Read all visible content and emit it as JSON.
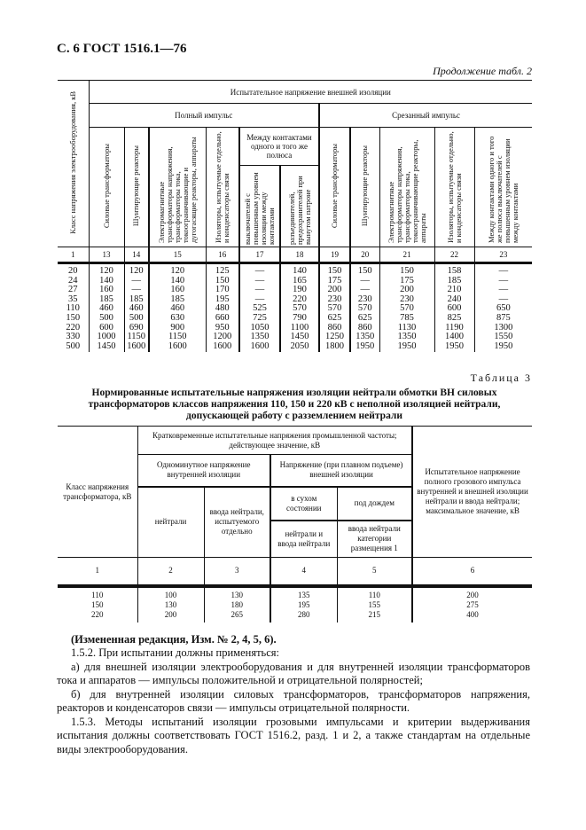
{
  "header": "С. 6 ГОСТ 1516.1—76",
  "continuation": "Продолжение табл. 2",
  "table2": {
    "col1_header": "Класс напряжения электрооборудования, кВ",
    "group_header": "Испытательное напряжение внешней изоляции",
    "full_impulse": "Полный импульс",
    "chopped_impulse": "Срезанный импульс",
    "between_contacts": "Между контактами одного и того же полюса",
    "sub_headers": {
      "c13": "Силовые трансформаторы",
      "c14": "Шунтирующие реакторы",
      "c15": "Электромагнитные трансформаторы напряжения, трансформаторы тока, токоограничивающие и дугогасящие реакторы, аппараты",
      "c16": "Изоляторы, испытуемые отдельно, и конденсаторы связи",
      "c17": "выключателей с повышенным уровнем изоляции между контактами",
      "c18": "разъединителей, предохранителей при вынутом патроне",
      "c19": "Силовые трансформаторы",
      "c20": "Шунтирующие реакторы",
      "c21": "Электромагнитные трансформаторы напряжения, трансформаторы тока, токоограничивающие реакторы, аппараты",
      "c22": "Изоляторы, испытуемые отдельно, и конденсаторы связи",
      "c23": "Между контактами одного и того же полюса выключателей с повышенным уровнем изоляции между контактами"
    },
    "col_numbers": [
      "1",
      "13",
      "14",
      "15",
      "16",
      "17",
      "18",
      "19",
      "20",
      "21",
      "22",
      "23"
    ],
    "rows": [
      [
        "20",
        "120",
        "120",
        "120",
        "125",
        "—",
        "140",
        "150",
        "150",
        "150",
        "158",
        "—"
      ],
      [
        "24",
        "140",
        "—",
        "140",
        "150",
        "—",
        "165",
        "175",
        "—",
        "175",
        "185",
        "—"
      ],
      [
        "27",
        "160",
        "—",
        "160",
        "170",
        "—",
        "190",
        "200",
        "—",
        "200",
        "210",
        "—"
      ],
      [
        "35",
        "185",
        "185",
        "185",
        "195",
        "—",
        "220",
        "230",
        "230",
        "230",
        "240",
        "—"
      ],
      [
        "110",
        "460",
        "460",
        "460",
        "480",
        "525",
        "570",
        "570",
        "570",
        "570",
        "600",
        "650"
      ],
      [
        "150",
        "500",
        "500",
        "630",
        "660",
        "725",
        "790",
        "625",
        "625",
        "785",
        "825",
        "875"
      ],
      [
        "220",
        "600",
        "690",
        "900",
        "950",
        "1050",
        "1100",
        "860",
        "860",
        "1130",
        "1190",
        "1300"
      ],
      [
        "330",
        "1000",
        "1150",
        "1150",
        "1200",
        "1350",
        "1450",
        "1250",
        "1350",
        "1350",
        "1400",
        "1550"
      ],
      [
        "500",
        "1450",
        "1600",
        "1600",
        "1600",
        "1600",
        "2050",
        "1800",
        "1950",
        "1950",
        "1950",
        "1950"
      ]
    ]
  },
  "table3": {
    "label": "Таблица 3",
    "title": "Нормированные испытательные напряжения изоляции нейтрали обмотки ВН силовых трансформаторов классов напряжения 110, 150 и 220 кВ с неполной изоляцией нейтрали, допускающей работу с разземлением нейтрали",
    "col1": "Класс напряжения трансформатора, кВ",
    "short_term": "Кратковременные испытательные напряжения промышленной частоты; действующее значение, кВ",
    "one_minute": "Одноминутное напряжение внутренней изоляции",
    "smooth_rise": "Напряжение (при плавном подъеме) внешней изоляции",
    "neutral": "нейтрали",
    "bushing_separate": "ввода нейтрали, испытуемого отдельно",
    "dry": "в сухом состоянии",
    "rain": "под дождем",
    "neutral_and_bushing": "нейтрали и ввода нейтрали",
    "bushing_cat": "ввода нейтрали категории размещения 1",
    "impulse": "Испытательное напряжение полного грозового импульса внутренней и внешней изоляции нейтрали и ввода нейтрали; максимальное значение, кВ",
    "col_numbers": [
      "1",
      "2",
      "3",
      "4",
      "5",
      "6"
    ],
    "rows": [
      [
        "110",
        "100",
        "130",
        "135",
        "110",
        "200"
      ],
      [
        "150",
        "130",
        "180",
        "195",
        "155",
        "275"
      ],
      [
        "220",
        "200",
        "265",
        "280",
        "215",
        "400"
      ]
    ]
  },
  "text": {
    "amend": "(Измененная редакция, Изм. № 2, 4, 5, 6).",
    "p1": "1.5.2. При испытании должны применяться:",
    "p2": "а) для внешней изоляции электрооборудования и для внутренней изоляции трансформаторов тока и аппаратов — импульсы положительной и отрицательной полярностей;",
    "p3": "б) для внутренней изоляции силовых трансформаторов, трансформаторов напряжения, реакторов и конденсаторов связи — импульсы отрицательной полярности.",
    "p4": "1.5.3. Методы испытаний изоляции грозовыми импульсами и критерии выдерживания испытания должны соответствовать ГОСТ 1516.2, разд. 1 и 2, а также стандартам на отдельные виды электрооборудования."
  }
}
